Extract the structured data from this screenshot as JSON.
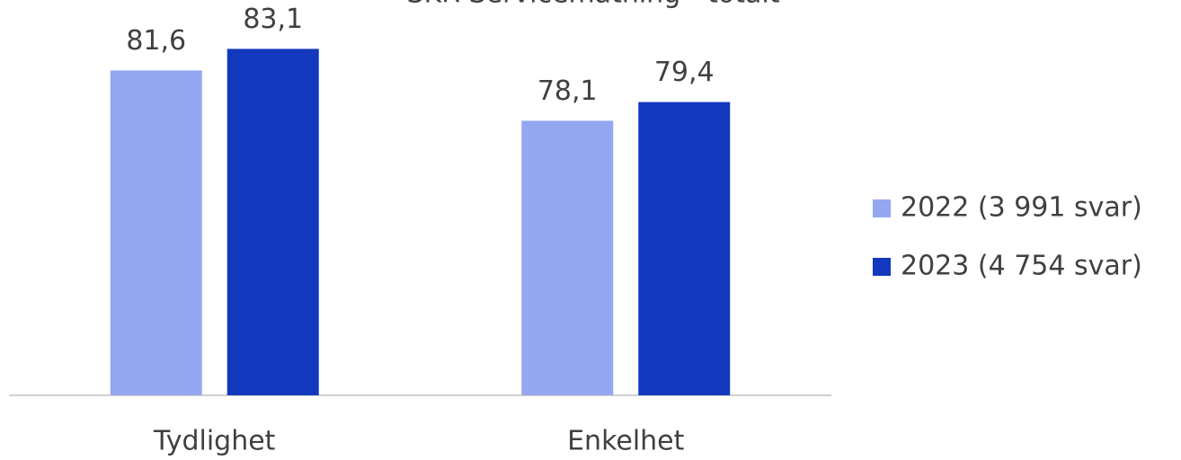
{
  "chart_data": {
    "type": "bar",
    "title": "SKR Servicemätning - totalt",
    "categories": [
      "Tydlighet",
      "Enkelhet"
    ],
    "series": [
      {
        "name": "2022 (3 991 svar)",
        "color": "#94a8f2",
        "values": [
          81.6,
          78.1
        ],
        "value_labels": [
          "81,6",
          "78,1"
        ]
      },
      {
        "name": "2023 (4 754 svar)",
        "color": "#1239bd",
        "values": [
          83.1,
          79.4
        ],
        "value_labels": [
          "83,1",
          "79,4"
        ]
      }
    ],
    "ylim": [
      59,
      86
    ],
    "legend": "right"
  }
}
